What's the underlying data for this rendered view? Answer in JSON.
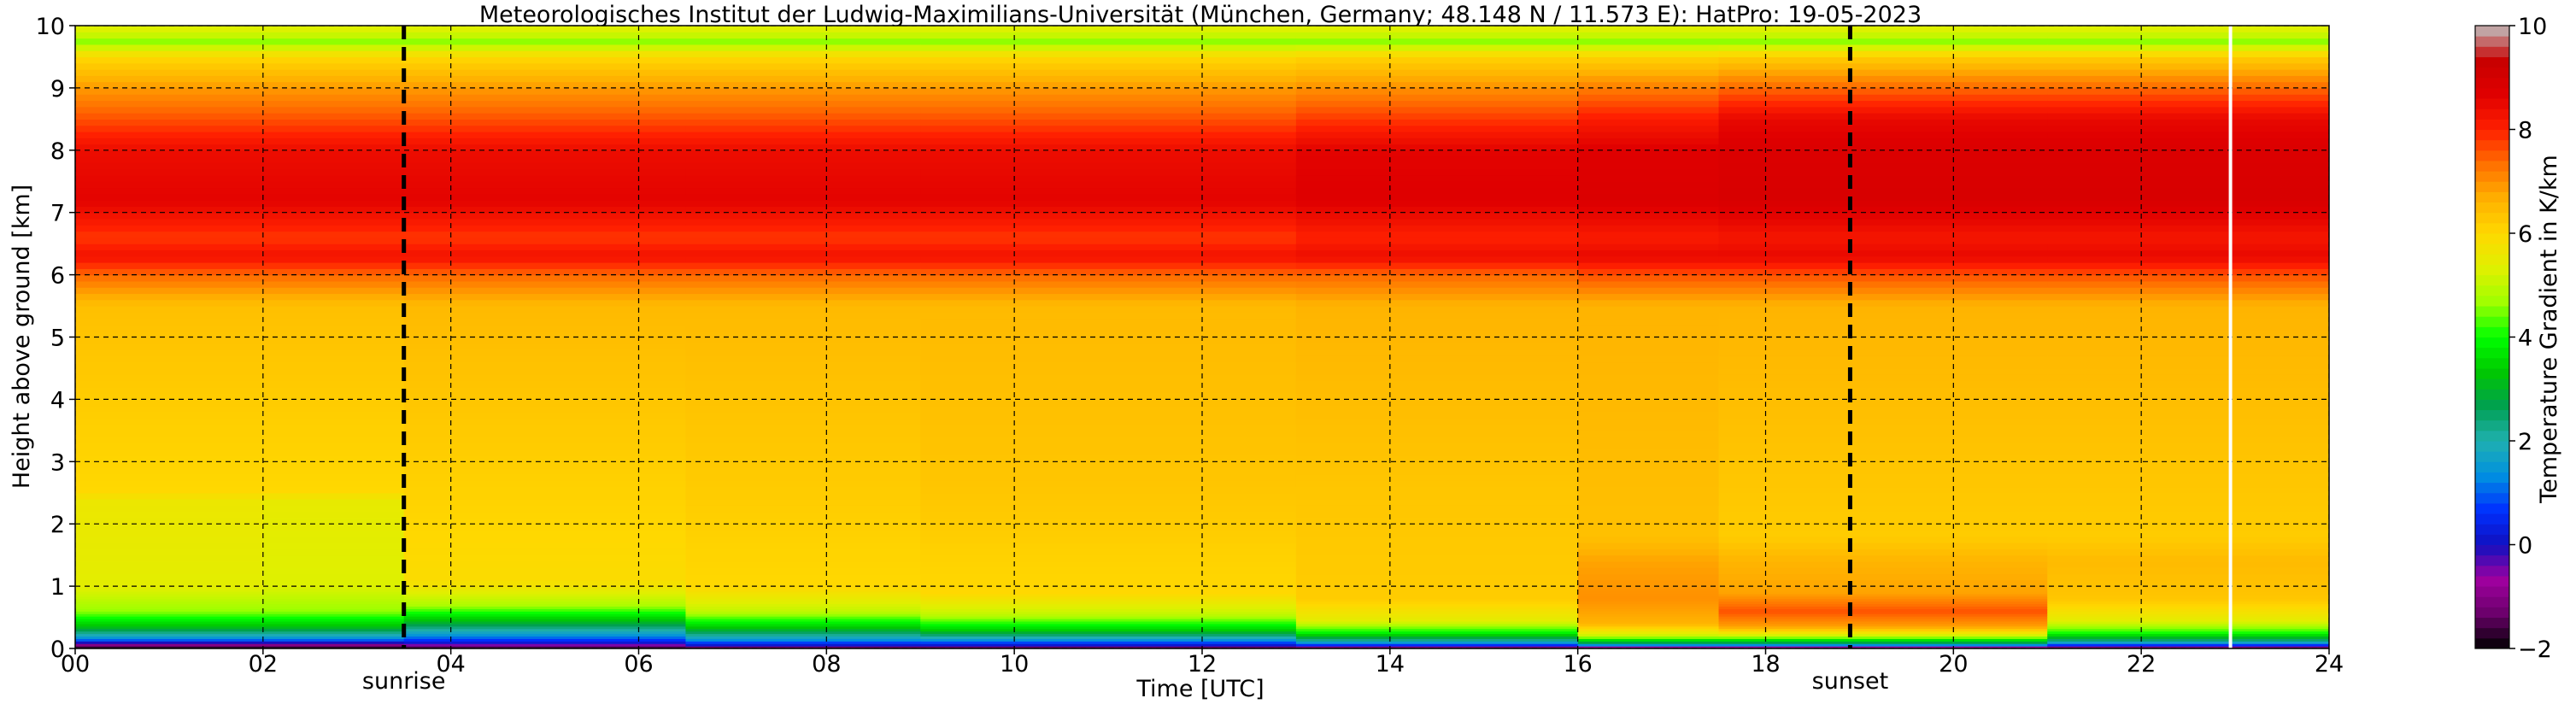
{
  "chart_data": {
    "type": "heatmap",
    "title": "Meteorologisches Institut der Ludwig-Maximilians-Universität (München, Germany; 48.148 N / 11.573 E):    HatPro: 19-05-2023",
    "xlabel": "Time [UTC]",
    "ylabel": "Height above ground [km]",
    "xlim": [
      0,
      24
    ],
    "ylim": [
      0,
      10
    ],
    "x_ticks": [
      "00",
      "02",
      "04",
      "06",
      "08",
      "10",
      "12",
      "14",
      "16",
      "18",
      "20",
      "22",
      "24"
    ],
    "y_ticks": [
      "0",
      "1",
      "2",
      "3",
      "4",
      "5",
      "6",
      "7",
      "8",
      "9",
      "10"
    ],
    "grid": true,
    "colorbar": {
      "label": "Temperature Gradient in K/km",
      "range": [
        -2,
        10
      ],
      "ticks": [
        "−2",
        "0",
        "2",
        "4",
        "6",
        "8",
        "10"
      ],
      "colors": [
        "#000000",
        "#6a006a",
        "#a000a0",
        "#1010c0",
        "#0030ff",
        "#0090e0",
        "#20b0b0",
        "#00a050",
        "#00c800",
        "#00ff00",
        "#a0ff00",
        "#e0f000",
        "#ffd800",
        "#ffb000",
        "#ff7000",
        "#ff2000",
        "#e00000",
        "#c80000",
        "#c0c0c0"
      ]
    },
    "annotations": [
      {
        "text": "sunrise",
        "x": 3.5
      },
      {
        "text": "sunset",
        "x": 18.9
      }
    ],
    "white_line_x": 22.95,
    "profile_legend": "height_km → gradient K/km per time band",
    "bands": [
      {
        "t0": 0.0,
        "t1": 2.0,
        "profile": [
          [
            0.0,
            -2
          ],
          [
            0.06,
            -1
          ],
          [
            0.15,
            1.2
          ],
          [
            0.35,
            3.2
          ],
          [
            0.6,
            4.6
          ],
          [
            1.0,
            5.4
          ],
          [
            2.4,
            5.6
          ],
          [
            2.5,
            6.0
          ],
          [
            5.5,
            6.4
          ],
          [
            6.0,
            7.4
          ],
          [
            6.3,
            8.3
          ],
          [
            6.6,
            7.8
          ],
          [
            7.2,
            8.6
          ],
          [
            8.0,
            8.4
          ],
          [
            8.5,
            7.6
          ],
          [
            9.0,
            6.9
          ],
          [
            9.5,
            6.0
          ],
          [
            9.75,
            4.6
          ],
          [
            9.9,
            5.3
          ],
          [
            10.0,
            5.3
          ]
        ]
      },
      {
        "t0": 2.0,
        "t1": 3.5,
        "profile": [
          [
            0.0,
            -2
          ],
          [
            0.06,
            -1
          ],
          [
            0.15,
            1.2
          ],
          [
            0.35,
            3.2
          ],
          [
            0.6,
            4.6
          ],
          [
            1.0,
            5.3
          ],
          [
            2.4,
            5.5
          ],
          [
            2.5,
            6.0
          ],
          [
            5.5,
            6.4
          ],
          [
            6.0,
            7.4
          ],
          [
            6.3,
            8.3
          ],
          [
            6.6,
            7.8
          ],
          [
            7.2,
            8.6
          ],
          [
            8.0,
            8.4
          ],
          [
            8.5,
            7.6
          ],
          [
            9.0,
            6.9
          ],
          [
            9.5,
            6.0
          ],
          [
            9.75,
            4.6
          ],
          [
            9.9,
            5.3
          ],
          [
            10.0,
            5.3
          ]
        ]
      },
      {
        "t0": 3.5,
        "t1": 6.5,
        "profile": [
          [
            0.0,
            -2
          ],
          [
            0.08,
            0.0
          ],
          [
            0.2,
            1.3
          ],
          [
            0.45,
            3.2
          ],
          [
            0.7,
            4.8
          ],
          [
            1.1,
            5.9
          ],
          [
            2.5,
            6.1
          ],
          [
            5.5,
            6.5
          ],
          [
            6.0,
            7.4
          ],
          [
            6.3,
            8.3
          ],
          [
            6.6,
            7.8
          ],
          [
            7.2,
            8.6
          ],
          [
            8.0,
            8.4
          ],
          [
            8.5,
            7.6
          ],
          [
            9.0,
            6.9
          ],
          [
            9.5,
            6.0
          ],
          [
            9.75,
            4.6
          ],
          [
            9.9,
            5.3
          ],
          [
            10.0,
            5.3
          ]
        ]
      },
      {
        "t0": 6.5,
        "t1": 9.0,
        "profile": [
          [
            0.0,
            -2
          ],
          [
            0.06,
            0.2
          ],
          [
            0.15,
            1.5
          ],
          [
            0.35,
            3.4
          ],
          [
            0.6,
            5.0
          ],
          [
            1.0,
            6.0
          ],
          [
            2.5,
            6.2
          ],
          [
            5.5,
            6.5
          ],
          [
            6.0,
            7.4
          ],
          [
            6.3,
            8.3
          ],
          [
            6.6,
            7.8
          ],
          [
            7.2,
            8.6
          ],
          [
            8.0,
            8.4
          ],
          [
            8.5,
            7.6
          ],
          [
            9.0,
            6.9
          ],
          [
            9.5,
            6.0
          ],
          [
            9.75,
            4.6
          ],
          [
            9.9,
            5.3
          ],
          [
            10.0,
            5.3
          ]
        ]
      },
      {
        "t0": 9.0,
        "t1": 13.0,
        "profile": [
          [
            0.0,
            -2
          ],
          [
            0.06,
            0.2
          ],
          [
            0.15,
            1.6
          ],
          [
            0.3,
            3.4
          ],
          [
            0.55,
            5.0
          ],
          [
            0.9,
            6.0
          ],
          [
            2.5,
            6.3
          ],
          [
            5.5,
            6.5
          ],
          [
            6.0,
            7.4
          ],
          [
            6.3,
            8.3
          ],
          [
            6.6,
            7.8
          ],
          [
            7.2,
            8.6
          ],
          [
            8.0,
            8.4
          ],
          [
            8.5,
            7.6
          ],
          [
            9.0,
            6.9
          ],
          [
            9.5,
            6.0
          ],
          [
            9.75,
            4.6
          ],
          [
            9.9,
            5.3
          ],
          [
            10.0,
            5.3
          ]
        ]
      },
      {
        "t0": 13.0,
        "t1": 16.0,
        "profile": [
          [
            0.0,
            -2
          ],
          [
            0.05,
            0.4
          ],
          [
            0.12,
            2.0
          ],
          [
            0.25,
            3.8
          ],
          [
            0.45,
            5.4
          ],
          [
            0.8,
            6.2
          ],
          [
            2.5,
            6.3
          ],
          [
            5.5,
            6.6
          ],
          [
            6.0,
            7.4
          ],
          [
            6.3,
            8.4
          ],
          [
            6.6,
            8.0
          ],
          [
            7.2,
            8.7
          ],
          [
            8.0,
            8.6
          ],
          [
            8.5,
            7.8
          ],
          [
            9.0,
            7.0
          ],
          [
            9.5,
            6.1
          ],
          [
            9.75,
            4.6
          ],
          [
            9.9,
            5.3
          ],
          [
            10.0,
            5.3
          ]
        ]
      },
      {
        "t0": 16.0,
        "t1": 17.5,
        "profile": [
          [
            0.0,
            -2
          ],
          [
            0.04,
            0.6
          ],
          [
            0.1,
            2.8
          ],
          [
            0.2,
            5.0
          ],
          [
            0.4,
            6.6
          ],
          [
            0.8,
            7.0
          ],
          [
            1.4,
            6.8
          ],
          [
            1.8,
            6.4
          ],
          [
            5.5,
            6.6
          ],
          [
            6.0,
            7.6
          ],
          [
            6.3,
            8.5
          ],
          [
            6.6,
            8.1
          ],
          [
            7.2,
            8.8
          ],
          [
            8.0,
            8.7
          ],
          [
            8.5,
            8.1
          ],
          [
            9.0,
            7.2
          ],
          [
            9.5,
            6.1
          ],
          [
            9.75,
            4.6
          ],
          [
            9.9,
            5.3
          ],
          [
            10.0,
            5.3
          ]
        ]
      },
      {
        "t0": 17.5,
        "t1": 21.0,
        "profile": [
          [
            0.0,
            -2
          ],
          [
            0.04,
            0.6
          ],
          [
            0.1,
            2.8
          ],
          [
            0.2,
            5.0
          ],
          [
            0.35,
            6.8
          ],
          [
            0.6,
            7.6
          ],
          [
            0.9,
            6.8
          ],
          [
            1.4,
            6.6
          ],
          [
            1.8,
            6.2
          ],
          [
            5.5,
            6.6
          ],
          [
            6.0,
            7.6
          ],
          [
            6.3,
            8.5
          ],
          [
            6.6,
            8.2
          ],
          [
            7.2,
            8.9
          ],
          [
            8.0,
            8.8
          ],
          [
            8.5,
            8.5
          ],
          [
            9.0,
            7.4
          ],
          [
            9.5,
            6.2
          ],
          [
            9.75,
            4.6
          ],
          [
            9.9,
            5.3
          ],
          [
            10.0,
            5.3
          ]
        ]
      },
      {
        "t0": 21.0,
        "t1": 24.0,
        "profile": [
          [
            0.0,
            -2
          ],
          [
            0.05,
            0.4
          ],
          [
            0.12,
            2.2
          ],
          [
            0.25,
            4.0
          ],
          [
            0.45,
            5.4
          ],
          [
            0.8,
            6.3
          ],
          [
            1.4,
            6.5
          ],
          [
            1.8,
            6.2
          ],
          [
            5.5,
            6.6
          ],
          [
            6.0,
            7.6
          ],
          [
            6.3,
            8.5
          ],
          [
            6.6,
            8.2
          ],
          [
            7.2,
            8.9
          ],
          [
            8.0,
            8.8
          ],
          [
            8.5,
            8.5
          ],
          [
            9.0,
            7.4
          ],
          [
            9.5,
            6.2
          ],
          [
            9.75,
            4.6
          ],
          [
            9.9,
            5.3
          ],
          [
            10.0,
            5.3
          ]
        ]
      }
    ]
  }
}
